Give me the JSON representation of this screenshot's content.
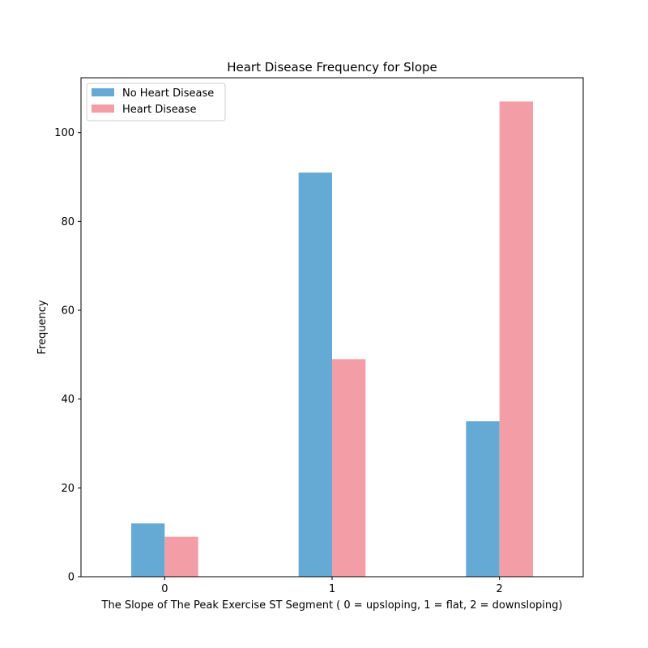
{
  "chart_data": {
    "type": "bar",
    "title": "Heart Disease Frequency for Slope",
    "xlabel": "The Slope of The Peak Exercise ST Segment ( 0 = upsloping, 1 = flat, 2 = downsloping)",
    "ylabel": "Frequency",
    "categories": [
      "0",
      "1",
      "2"
    ],
    "series": [
      {
        "name": "No Heart Disease",
        "color": "#65aad4",
        "values": [
          12,
          91,
          35
        ]
      },
      {
        "name": "Heart Disease",
        "color": "#f39ea7",
        "values": [
          9,
          49,
          107
        ]
      }
    ],
    "ylim": [
      0,
      112.35
    ],
    "yticks": [
      0,
      20,
      40,
      60,
      80,
      100
    ],
    "grid": false,
    "legend_position": "top-left"
  }
}
